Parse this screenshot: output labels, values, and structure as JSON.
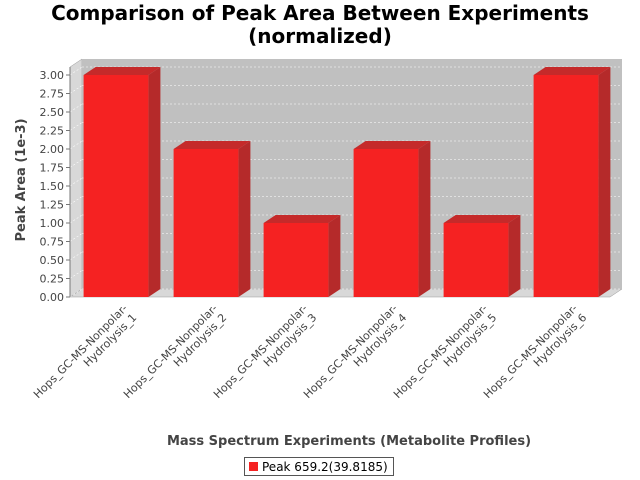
{
  "chart_data": {
    "type": "bar",
    "title_lines": [
      "Comparison of Peak Area Between Experiments",
      "(normalized)"
    ],
    "xlabel": "Mass Spectrum Experiments (Metabolite Profiles)",
    "ylabel": "Peak Area (1e-3)",
    "ylim": [
      0,
      3.0
    ],
    "yticks": [
      "0.00",
      "0.25",
      "0.50",
      "0.75",
      "1.00",
      "1.25",
      "1.50",
      "1.75",
      "2.00",
      "2.25",
      "2.50",
      "2.75",
      "3.00"
    ],
    "categories": [
      [
        "Hops_GC-MS-Nonpolar-",
        "Hydrolysis_1"
      ],
      [
        "Hops_GC-MS-Nonpolar-",
        "Hydrolysis_2"
      ],
      [
        "Hops_GC-MS-Nonpolar-",
        "Hydrolysis_3"
      ],
      [
        "Hops_GC-MS-Nonpolar-",
        "Hydrolysis_4"
      ],
      [
        "Hops_GC-MS-Nonpolar-",
        "Hydrolysis_5"
      ],
      [
        "Hops_GC-MS-Nonpolar-",
        "Hydrolysis_6"
      ]
    ],
    "series": [
      {
        "name": "Peak 659.2(39.8185)",
        "values": [
          3.0,
          2.0,
          1.0,
          2.0,
          1.0,
          3.0
        ]
      }
    ],
    "legend_position": "bottom",
    "grid": true,
    "style": "3d",
    "colors": {
      "bar": "#f52222",
      "bar_top": "#c52a2a",
      "bar_side": "#b52a2a",
      "plot_bg": "#c0c0c0",
      "wall": "#d8d8d8"
    }
  }
}
